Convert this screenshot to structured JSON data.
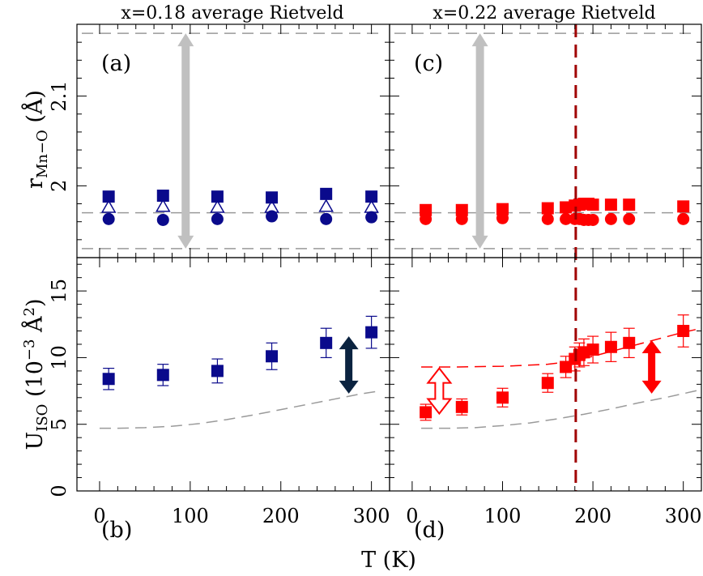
{
  "chart_data": {
    "type": "scatter",
    "xlabel": "T (K)",
    "xlim": [
      -25,
      320
    ],
    "xticks": [
      0,
      100,
      200,
      300
    ],
    "columns": [
      {
        "title": "x=0.18 average Rietveld",
        "color": "#0a0a8c"
      },
      {
        "title": "x=0.22 average Rietveld",
        "color": "#ff0000"
      }
    ],
    "row_labels": {
      "top": {
        "main": "r",
        "sub": "Mn−O",
        "unit": " (Å)"
      },
      "bottom": {
        "main": "U",
        "sub": "ISO",
        "unit": " (10",
        "sup": "−3",
        "unit2": " Å",
        "sup2": "2",
        "close": ")"
      }
    },
    "top_ylim": [
      1.92,
      2.18
    ],
    "top_yticks": [
      {
        "v": 2.0,
        "t": "2"
      },
      {
        "v": 2.1,
        "t": "2.1"
      }
    ],
    "bottom_ylim": [
      0,
      17.5
    ],
    "bottom_yticks": [
      {
        "v": 0,
        "t": "0"
      },
      {
        "v": 5,
        "t": "5"
      },
      {
        "v": 10,
        "t": "10"
      },
      {
        "v": 15,
        "t": "15"
      }
    ],
    "top_guides": [
      1.93,
      1.97,
      2.17
    ],
    "vline_T": 181,
    "panels": {
      "a": {
        "label": "(a)",
        "T": [
          10,
          70,
          130,
          190,
          250,
          300
        ],
        "square": [
          1.988,
          1.989,
          1.988,
          1.987,
          1.991,
          1.988
        ],
        "triangle": [
          1.976,
          1.977,
          1.976,
          1.976,
          1.977,
          1.976
        ],
        "circle": [
          1.963,
          1.962,
          1.963,
          1.966,
          1.963,
          1.965
        ],
        "arrow": {
          "T": 95,
          "from": 1.93,
          "to": 2.17,
          "color": "#c0c0c0"
        }
      },
      "c": {
        "label": "(c)",
        "T": [
          15,
          55,
          100,
          150,
          170,
          180,
          185,
          190,
          195,
          200,
          220,
          240,
          300
        ],
        "square": [
          1.973,
          1.973,
          1.974,
          1.975,
          1.976,
          1.978,
          1.979,
          1.98,
          1.98,
          1.979,
          1.979,
          1.979,
          1.977
        ],
        "circle": [
          1.963,
          1.963,
          1.964,
          1.963,
          1.963,
          1.963,
          1.963,
          1.962,
          1.962,
          1.962,
          1.963,
          1.963,
          1.963
        ],
        "arrow": {
          "T": 75,
          "from": 1.93,
          "to": 2.17,
          "color": "#c0c0c0"
        }
      },
      "b": {
        "label": "(b)",
        "T": [
          10,
          70,
          130,
          190,
          250,
          300
        ],
        "values": [
          8.4,
          8.7,
          9.0,
          10.1,
          11.1,
          11.9
        ],
        "errors": [
          0.8,
          0.8,
          0.9,
          1.0,
          1.1,
          1.2
        ],
        "arrow": {
          "T": 275,
          "from": 7.3,
          "to": 11.6,
          "color": "#0b2340",
          "style": "solid"
        },
        "gray_curve": {
          "T": [
            0,
            20,
            50,
            80,
            110,
            140,
            170,
            200,
            230,
            260,
            290,
            310
          ],
          "U": [
            4.7,
            4.7,
            4.75,
            4.85,
            5.05,
            5.35,
            5.7,
            6.1,
            6.5,
            6.9,
            7.3,
            7.5
          ]
        }
      },
      "d": {
        "label": "(d)",
        "T": [
          15,
          55,
          100,
          150,
          170,
          180,
          185,
          190,
          200,
          220,
          240,
          300
        ],
        "values": [
          5.9,
          6.3,
          7.0,
          8.1,
          9.3,
          9.9,
          10.2,
          10.4,
          10.6,
          10.8,
          11.1,
          12.0
        ],
        "errors": [
          0.6,
          0.6,
          0.7,
          0.7,
          0.8,
          0.9,
          0.9,
          1.0,
          1.0,
          1.1,
          1.1,
          1.2
        ],
        "arrow_hollow": {
          "T": 30,
          "from": 5.8,
          "to": 9.2,
          "color": "#ff0000"
        },
        "arrow_solid": {
          "T": 265,
          "from": 7.3,
          "to": 11.3,
          "color": "#ff0000"
        },
        "red_curve": {
          "T": [
            10,
            50,
            100,
            150,
            175,
            200,
            250,
            300,
            320
          ],
          "U": [
            9.3,
            9.3,
            9.35,
            9.5,
            9.7,
            10.1,
            11.0,
            11.9,
            12.2
          ]
        },
        "gray_curve": {
          "T": [
            10,
            40,
            70,
            100,
            130,
            160,
            190,
            220,
            250,
            280,
            310,
            320
          ],
          "U": [
            4.7,
            4.7,
            4.75,
            4.9,
            5.1,
            5.4,
            5.75,
            6.15,
            6.6,
            7.0,
            7.45,
            7.6
          ]
        }
      }
    }
  }
}
